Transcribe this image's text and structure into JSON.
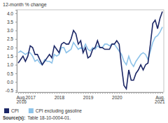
{
  "chart_data": {
    "type": "line",
    "title": "12-month % change",
    "categories": [
      "Aug.\n2016",
      null,
      null,
      null,
      null,
      "2017",
      null,
      null,
      null,
      null,
      null,
      null,
      null,
      null,
      null,
      null,
      null,
      "2018",
      null,
      null,
      null,
      null,
      null,
      null,
      null,
      null,
      null,
      null,
      null,
      "2019",
      null,
      null,
      null,
      null,
      null,
      null,
      null,
      null,
      null,
      null,
      null,
      "2020",
      null,
      null,
      null,
      null,
      null,
      null,
      null,
      null,
      null,
      null,
      null,
      null,
      null,
      null,
      null,
      null,
      null,
      null,
      "Aug.\n2021"
    ],
    "series": [
      {
        "name": "CPI",
        "color": "#1c2766",
        "values": [
          1.1,
          1.3,
          1.5,
          1.2,
          1.5,
          2.1,
          2.0,
          1.6,
          1.6,
          1.3,
          1.0,
          1.2,
          1.4,
          1.6,
          1.4,
          2.1,
          1.9,
          1.7,
          2.2,
          2.3,
          2.2,
          2.2,
          2.5,
          3.0,
          2.8,
          2.2,
          2.4,
          1.7,
          2.0,
          1.4,
          1.5,
          1.9,
          2.0,
          2.4,
          2.0,
          2.0,
          1.9,
          1.9,
          1.9,
          2.2,
          2.2,
          2.4,
          2.2,
          0.9,
          -0.2,
          -0.4,
          0.7,
          0.1,
          0.1,
          0.5,
          0.7,
          1.0,
          0.7,
          1.0,
          1.1,
          2.2,
          3.4,
          3.6,
          3.1,
          3.7,
          4.1
        ]
      },
      {
        "name": "CPI excluding gasoline",
        "color": "#8ec3e9",
        "values": [
          1.7,
          1.8,
          1.7,
          1.6,
          1.7,
          1.7,
          1.5,
          1.2,
          1.3,
          1.1,
          1.0,
          1.3,
          1.2,
          1.2,
          1.1,
          1.6,
          1.5,
          1.6,
          2.0,
          2.0,
          1.7,
          1.8,
          1.9,
          2.3,
          2.1,
          1.9,
          2.0,
          1.9,
          2.2,
          1.9,
          1.8,
          2.0,
          1.9,
          2.1,
          2.0,
          2.0,
          2.2,
          2.2,
          2.1,
          2.2,
          2.2,
          2.0,
          1.8,
          1.6,
          1.2,
          1.0,
          1.5,
          1.1,
          0.9,
          1.2,
          1.4,
          1.6,
          1.7,
          1.6,
          1.3,
          1.8,
          2.3,
          2.6,
          2.7,
          2.9,
          3.2
        ]
      }
    ],
    "ylim": [
      -0.6,
      4.2
    ],
    "yticks": [
      -0.5,
      {
        "value": 0,
        "label": "0.0"
      },
      0.5,
      {
        "value": 1,
        "label": "1.0"
      },
      1.5,
      {
        "value": 2,
        "label": "2.0"
      },
      2.5,
      {
        "value": 3,
        "label": "3.0"
      },
      3.5,
      {
        "value": 4,
        "label": "4.0"
      }
    ],
    "grid": false,
    "legend": "bottom",
    "source": [
      "Source(s):",
      "Table 18-10-0004-01."
    ]
  }
}
